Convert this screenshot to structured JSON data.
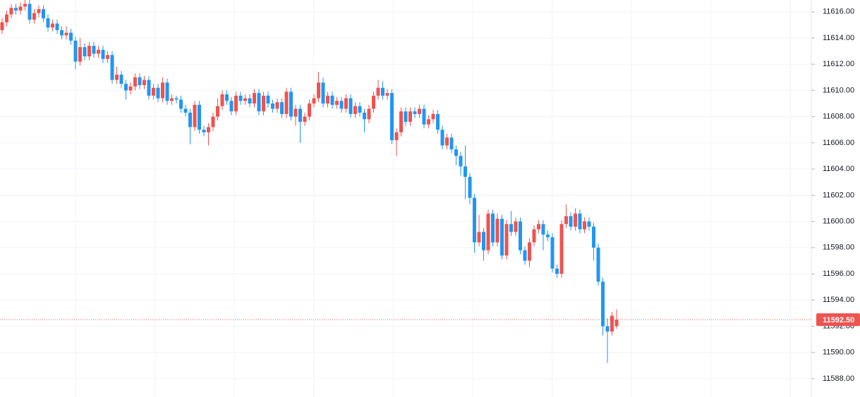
{
  "chart_data": {
    "type": "candlestick",
    "open": [
      11614.6,
      11615.2,
      11615.8,
      11616.3,
      11616.1,
      11616.4,
      11616.6,
      11615.4,
      11615.9,
      11616.2,
      11615.5,
      11614.8,
      11615.1,
      11614.6,
      11614.2,
      11614.4,
      11613.8,
      11612.2,
      11613.3,
      11612.6,
      11613.4,
      11612.8,
      11613.1,
      11612.4,
      11612.7,
      11610.8,
      11611.2,
      11610.5,
      11610.0,
      11610.3,
      11611.0,
      11610.4,
      11610.8,
      11609.6,
      11610.2,
      11609.4,
      11610.6,
      11609.2,
      11609.4,
      11609.3,
      11608.6,
      11608.3,
      11607.2,
      11608.9,
      11607.0,
      11606.8,
      11607.2,
      11608.0,
      11608.8,
      11609.7,
      11609.2,
      11608.4,
      11609.6,
      11609.2,
      11609.4,
      11609.0,
      11609.8,
      11608.4,
      11609.6,
      11609.0,
      11608.6,
      11609.1,
      11608.2,
      11609.9,
      11608.0,
      11608.6,
      11607.6,
      11608.0,
      11609.0,
      11609.4,
      11610.6,
      11609.0,
      11609.6,
      11608.9,
      11609.2,
      11608.6,
      11609.4,
      11608.2,
      11608.8,
      11608.3,
      11607.8,
      11608.6,
      11609.6,
      11610.2,
      11609.6,
      11609.8,
      11606.2,
      11606.8,
      11608.4,
      11607.6,
      11608.4,
      11608.2,
      11608.6,
      11607.4,
      11607.8,
      11608.2,
      11607.0,
      11605.8,
      11606.4,
      11605.5,
      11605.0,
      11604.2,
      11603.4,
      11601.8,
      11598.4,
      11599.2,
      11597.8,
      11600.6,
      11598.4,
      11600.2,
      11597.4,
      11599.8,
      11599.2,
      11600.0,
      11597.8,
      11597.0,
      11598.4,
      11599.4,
      11599.8,
      11599.0,
      11598.8,
      11596.4,
      11596.0,
      11599.8,
      11600.4,
      11599.6,
      11600.6,
      11599.4,
      11600.0,
      11599.6,
      11598.0,
      11595.4,
      11592.0,
      11591.6,
      11592.0
    ],
    "high": [
      11615.5,
      11616.1,
      11616.6,
      11616.6,
      11616.7,
      11616.9,
      11616.9,
      11616.2,
      11616.5,
      11616.5,
      11615.8,
      11615.4,
      11615.4,
      11614.9,
      11614.9,
      11614.7,
      11614.1,
      11614.0,
      11613.6,
      11613.7,
      11613.7,
      11613.4,
      11613.4,
      11613.0,
      11613.0,
      11611.8,
      11611.5,
      11610.8,
      11610.6,
      11611.3,
      11611.3,
      11611.1,
      11611.1,
      11610.5,
      11610.5,
      11611.0,
      11610.9,
      11609.7,
      11609.6,
      11609.6,
      11608.9,
      11608.6,
      11609.2,
      11609.2,
      11607.3,
      11607.5,
      11608.3,
      11609.4,
      11610.0,
      11610.0,
      11609.5,
      11609.9,
      11609.9,
      11609.7,
      11609.7,
      11610.1,
      11610.1,
      11609.9,
      11609.9,
      11609.3,
      11609.4,
      11609.4,
      11610.2,
      11610.2,
      11608.9,
      11608.9,
      11608.3,
      11609.3,
      11609.7,
      11611.4,
      11611.0,
      11609.9,
      11609.9,
      11609.5,
      11609.5,
      11609.7,
      11609.7,
      11609.1,
      11609.1,
      11608.6,
      11608.9,
      11609.9,
      11610.8,
      11610.7,
      11610.1,
      11610.1,
      11607.1,
      11608.7,
      11608.7,
      11608.7,
      11608.7,
      11608.9,
      11608.9,
      11608.1,
      11608.5,
      11608.5,
      11607.3,
      11606.7,
      11606.7,
      11605.8,
      11605.3,
      11605.8,
      11603.7,
      11602.1,
      11600.5,
      11599.5,
      11600.9,
      11600.9,
      11600.6,
      11600.5,
      11600.1,
      11600.8,
      11600.3,
      11600.3,
      11598.1,
      11598.7,
      11599.7,
      11600.1,
      11600.1,
      11599.3,
      11599.1,
      11596.7,
      11600.1,
      11601.3,
      11600.7,
      11601.0,
      11600.9,
      11600.3,
      11600.3,
      11599.9,
      11598.3,
      11595.7,
      11592.6,
      11593.1,
      11593.3
    ],
    "low": [
      11614.3,
      11614.9,
      11615.5,
      11615.8,
      11615.8,
      11616.1,
      11615.1,
      11615.1,
      11615.6,
      11615.2,
      11614.5,
      11614.5,
      11614.3,
      11613.9,
      11613.9,
      11613.5,
      11611.6,
      11611.9,
      11612.3,
      11612.3,
      11612.5,
      11612.5,
      11612.1,
      11612.1,
      11610.5,
      11610.5,
      11610.2,
      11609.3,
      11609.7,
      11610.0,
      11610.1,
      11610.1,
      11609.3,
      11609.3,
      11609.1,
      11609.1,
      11608.9,
      11608.9,
      11609.0,
      11608.3,
      11608.0,
      11605.9,
      11606.9,
      11606.7,
      11606.5,
      11605.8,
      11606.9,
      11607.7,
      11608.5,
      11608.9,
      11608.1,
      11608.1,
      11608.9,
      11608.9,
      11608.7,
      11608.7,
      11608.1,
      11608.1,
      11608.7,
      11608.3,
      11608.3,
      11607.9,
      11607.9,
      11607.7,
      11607.3,
      11606.0,
      11607.3,
      11607.7,
      11608.7,
      11609.1,
      11608.7,
      11608.7,
      11608.6,
      11608.6,
      11608.3,
      11608.3,
      11607.9,
      11607.9,
      11608.0,
      11606.8,
      11607.5,
      11608.3,
      11609.3,
      11609.3,
      11609.3,
      11605.9,
      11605.0,
      11606.5,
      11607.3,
      11607.3,
      11607.9,
      11607.9,
      11607.1,
      11607.1,
      11607.5,
      11606.7,
      11605.5,
      11605.5,
      11605.2,
      11604.3,
      11603.5,
      11601.7,
      11601.3,
      11597.6,
      11598.1,
      11597.0,
      11597.5,
      11598.1,
      11598.1,
      11597.1,
      11597.1,
      11598.9,
      11598.9,
      11597.5,
      11596.7,
      11596.5,
      11598.1,
      11599.1,
      11597.8,
      11598.5,
      11596.1,
      11595.7,
      11595.7,
      11599.5,
      11599.3,
      11599.3,
      11599.1,
      11599.1,
      11599.3,
      11597.0,
      11595.1,
      11591.3,
      11589.2,
      11591.3,
      11591.8
    ],
    "close": [
      11615.2,
      11615.8,
      11616.3,
      11616.1,
      11616.4,
      11616.6,
      11615.4,
      11615.9,
      11616.2,
      11615.5,
      11614.8,
      11615.1,
      11614.6,
      11614.2,
      11614.4,
      11613.8,
      11612.2,
      11613.3,
      11612.6,
      11613.4,
      11612.8,
      11613.1,
      11612.4,
      11612.7,
      11610.8,
      11611.2,
      11610.5,
      11610.0,
      11610.3,
      11611.0,
      11610.4,
      11610.8,
      11609.6,
      11610.2,
      11609.4,
      11610.6,
      11609.2,
      11609.4,
      11609.3,
      11608.6,
      11608.3,
      11607.2,
      11608.9,
      11607.0,
      11606.8,
      11607.2,
      11608.0,
      11608.8,
      11609.7,
      11609.2,
      11608.4,
      11609.6,
      11609.2,
      11609.4,
      11609.0,
      11609.8,
      11608.4,
      11609.6,
      11609.0,
      11608.6,
      11609.1,
      11608.2,
      11609.9,
      11608.0,
      11608.6,
      11607.6,
      11608.0,
      11609.0,
      11609.4,
      11610.6,
      11609.0,
      11609.6,
      11608.9,
      11609.2,
      11608.6,
      11609.4,
      11608.2,
      11608.8,
      11608.3,
      11607.8,
      11608.6,
      11609.6,
      11610.2,
      11609.6,
      11609.8,
      11606.2,
      11606.8,
      11608.4,
      11607.6,
      11608.4,
      11608.2,
      11608.6,
      11607.4,
      11607.8,
      11608.2,
      11607.0,
      11605.8,
      11606.4,
      11605.5,
      11605.0,
      11604.2,
      11603.4,
      11601.8,
      11598.4,
      11599.2,
      11597.8,
      11600.6,
      11598.4,
      11600.2,
      11597.4,
      11599.8,
      11599.2,
      11600.0,
      11597.8,
      11597.0,
      11598.4,
      11599.4,
      11599.8,
      11599.0,
      11598.8,
      11596.4,
      11596.0,
      11599.8,
      11600.4,
      11599.6,
      11600.6,
      11599.4,
      11600.0,
      11599.6,
      11598.0,
      11595.4,
      11592.0,
      11591.6,
      11592.8,
      11592.5
    ],
    "up_color": "#ef5350",
    "down_color": "#2196f3",
    "ylim": [
      11586.6,
      11616.9
    ],
    "yticks": [
      {
        "value": 11588,
        "label": "11588.00"
      },
      {
        "value": 11590,
        "label": "11590.00"
      },
      {
        "value": 11592,
        "label": "11592.00"
      },
      {
        "value": 11594,
        "label": "11594.00"
      },
      {
        "value": 11596,
        "label": "11596.00"
      },
      {
        "value": 11598,
        "label": "11598.00"
      },
      {
        "value": 11600,
        "label": "11600.00"
      },
      {
        "value": 11602,
        "label": "11602.00"
      },
      {
        "value": 11604,
        "label": "11604.00"
      },
      {
        "value": 11606,
        "label": "11606.00"
      },
      {
        "value": 11608,
        "label": "11608.00"
      },
      {
        "value": 11610,
        "label": "11610.00"
      },
      {
        "value": 11612,
        "label": "11612.00"
      },
      {
        "value": 11614,
        "label": "11614.00"
      },
      {
        "value": 11616,
        "label": "11616.00"
      }
    ],
    "grid": true,
    "last_price": {
      "value": 11592.5,
      "label": "11592.50"
    }
  }
}
